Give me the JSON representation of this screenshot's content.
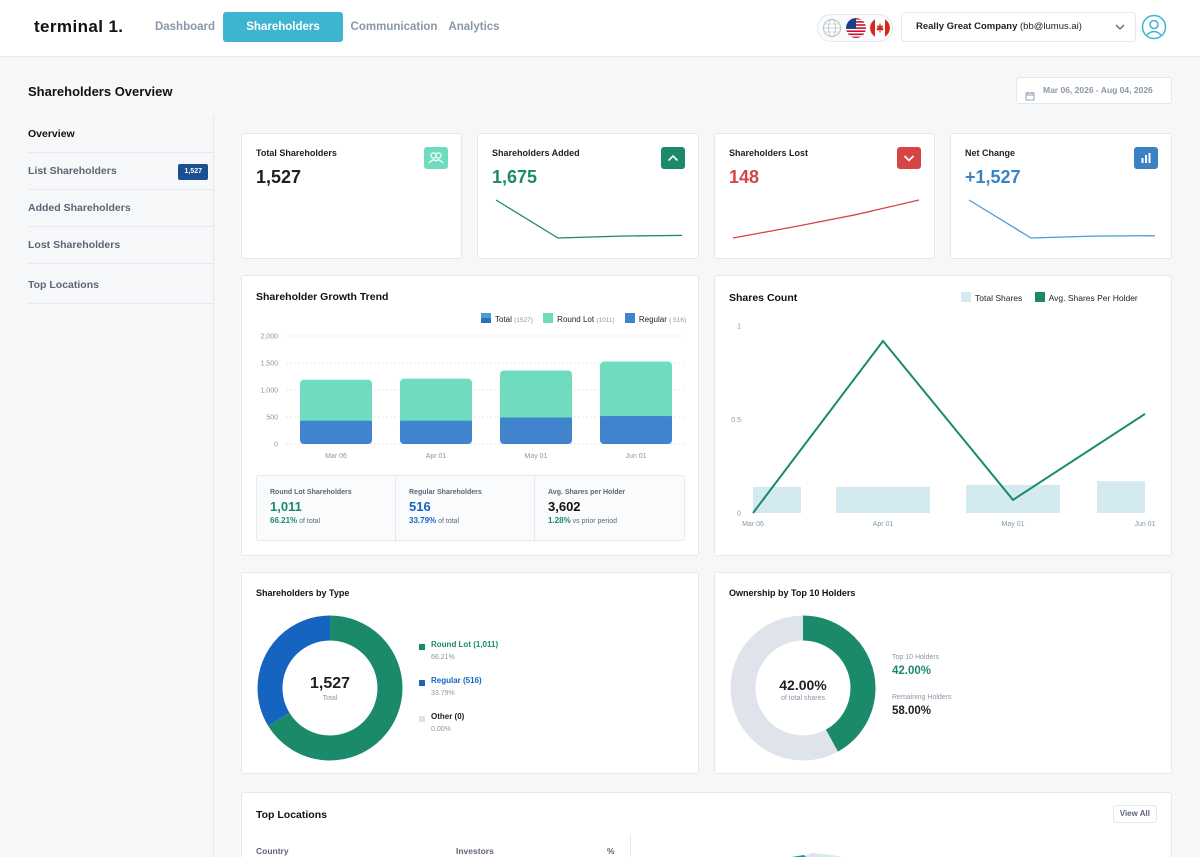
{
  "app": {
    "logo": "terminal 1."
  },
  "nav": {
    "tabs": [
      {
        "label": "Dashboard"
      },
      {
        "label": "Shareholders"
      },
      {
        "label": "Communication"
      },
      {
        "label": "Analytics"
      }
    ]
  },
  "header": {
    "company_name": "Really Great Company",
    "company_email": "(bb@lumus.ai)"
  },
  "page": {
    "title": "Shareholders Overview",
    "date_range": "Mar 06, 2026 - Aug 04, 2026"
  },
  "sidebar": {
    "items": [
      {
        "label": "Overview"
      },
      {
        "label": "List Shareholders",
        "badge": "1,527"
      },
      {
        "label": "Added Shareholders"
      },
      {
        "label": "Lost Shareholders"
      },
      {
        "label": "Top Locations"
      }
    ]
  },
  "kpis": [
    {
      "label": "Total Shareholders",
      "value": "1,527",
      "icon": "users-icon",
      "color": "#1d1f24"
    },
    {
      "label": "Shareholders Added",
      "value": "1,675",
      "icon": "chevron-up-icon",
      "color": "#1b8a6b"
    },
    {
      "label": "Shareholders Lost",
      "value": "148",
      "icon": "chevron-down-icon",
      "color": "#d64545"
    },
    {
      "label": "Net Change",
      "value": "+1,527",
      "icon": "bar-chart-icon",
      "color": "#3b82c4"
    }
  ],
  "colors": {
    "accent": "#3db5d0",
    "total": "#4a9bd6",
    "round_lot": "#6fdcc0",
    "regular": "#3f84cc",
    "green": "#1b8a6b",
    "red": "#d64545",
    "blue_dark": "#1565c0",
    "other": "#dfe4ec",
    "shares_bar": "#d3eaf0"
  },
  "growth": {
    "title": "Shareholder Growth Trend",
    "legend": [
      {
        "name": "Total",
        "count": "(1527)"
      },
      {
        "name": "Round Lot",
        "count": "(1011)"
      },
      {
        "name": "Regular",
        "count": "( 516)"
      }
    ],
    "stats": [
      {
        "label": "Round Lot Shareholders",
        "value": "1,011",
        "pct": "66.21%",
        "suffix": "of total"
      },
      {
        "label": "Regular Shareholders",
        "value": "516",
        "pct": "33.79%",
        "suffix": "of total"
      },
      {
        "label": "Avg. Shares per Holder",
        "value": "3,602",
        "pct": "1.28%",
        "suffix": "vs prior period"
      }
    ]
  },
  "shares": {
    "title": "Shares Count",
    "legend": [
      "Total Shares",
      "Avg. Shares Per Holder"
    ]
  },
  "by_type": {
    "title": "Shareholders by Type",
    "center_value": "1,527",
    "center_label": "Total",
    "items": [
      {
        "name": "Round Lot (1,011)",
        "pct": "66.21%"
      },
      {
        "name": "Regular (516)",
        "pct": "33.79%"
      },
      {
        "name": "Other (0)",
        "pct": "0.00%"
      }
    ]
  },
  "top10": {
    "title": "Ownership by Top 10 Holders",
    "center_value": "42.00%",
    "center_label": "of total shares",
    "items": [
      {
        "label": "Top 10 Holders",
        "value": "42.00%"
      },
      {
        "label": "Remaining Holders",
        "value": "58.00%"
      }
    ]
  },
  "locations": {
    "title": "Top Locations",
    "view_all": "View All",
    "columns": [
      "Country",
      "Investors",
      "%"
    ]
  },
  "chart_data": [
    {
      "type": "bar",
      "title": "Shareholder Growth Trend",
      "categories": [
        "Mar 06",
        "Apr 01",
        "May 01",
        "Jun 01"
      ],
      "series": [
        {
          "name": "Regular",
          "values": [
            430,
            430,
            490,
            516
          ]
        },
        {
          "name": "Round Lot",
          "values": [
            760,
            780,
            870,
            1011
          ]
        }
      ],
      "stacked": true,
      "yticks": [
        "0",
        "500",
        "1,000",
        "1,500",
        "2,000"
      ],
      "ylim": [
        0,
        2000
      ],
      "grid": true
    },
    {
      "type": "line",
      "title": "Shares Count",
      "x": [
        "Mar 06",
        "Apr 01",
        "May 01",
        "Jun 01"
      ],
      "series": [
        {
          "name": "Total Shares",
          "kind": "bar",
          "values": [
            0.14,
            0.14,
            0.15,
            0.17
          ]
        },
        {
          "name": "Avg. Shares Per Holder",
          "kind": "line",
          "values": [
            0.0,
            0.92,
            0.07,
            0.53
          ]
        }
      ],
      "yticks": [
        "0",
        "0.5",
        "1"
      ],
      "ylim": [
        0,
        1
      ]
    },
    {
      "type": "pie",
      "title": "Shareholders by Type",
      "labels": [
        "Round Lot",
        "Regular",
        "Other"
      ],
      "values": [
        66.21,
        33.79,
        0.0
      ]
    },
    {
      "type": "pie",
      "title": "Ownership by Top 10 Holders",
      "labels": [
        "Top 10 Holders",
        "Remaining Holders"
      ],
      "values": [
        42.0,
        58.0
      ]
    },
    {
      "type": "line",
      "title": "Shareholders Added",
      "values": [
        1.0,
        0.0,
        0.05,
        0.07
      ]
    },
    {
      "type": "line",
      "title": "Shareholders Lost",
      "values": [
        0.0,
        0.3,
        0.62,
        1.0
      ]
    },
    {
      "type": "line",
      "title": "Net Change",
      "values": [
        1.0,
        0.0,
        0.05,
        0.06
      ]
    }
  ]
}
